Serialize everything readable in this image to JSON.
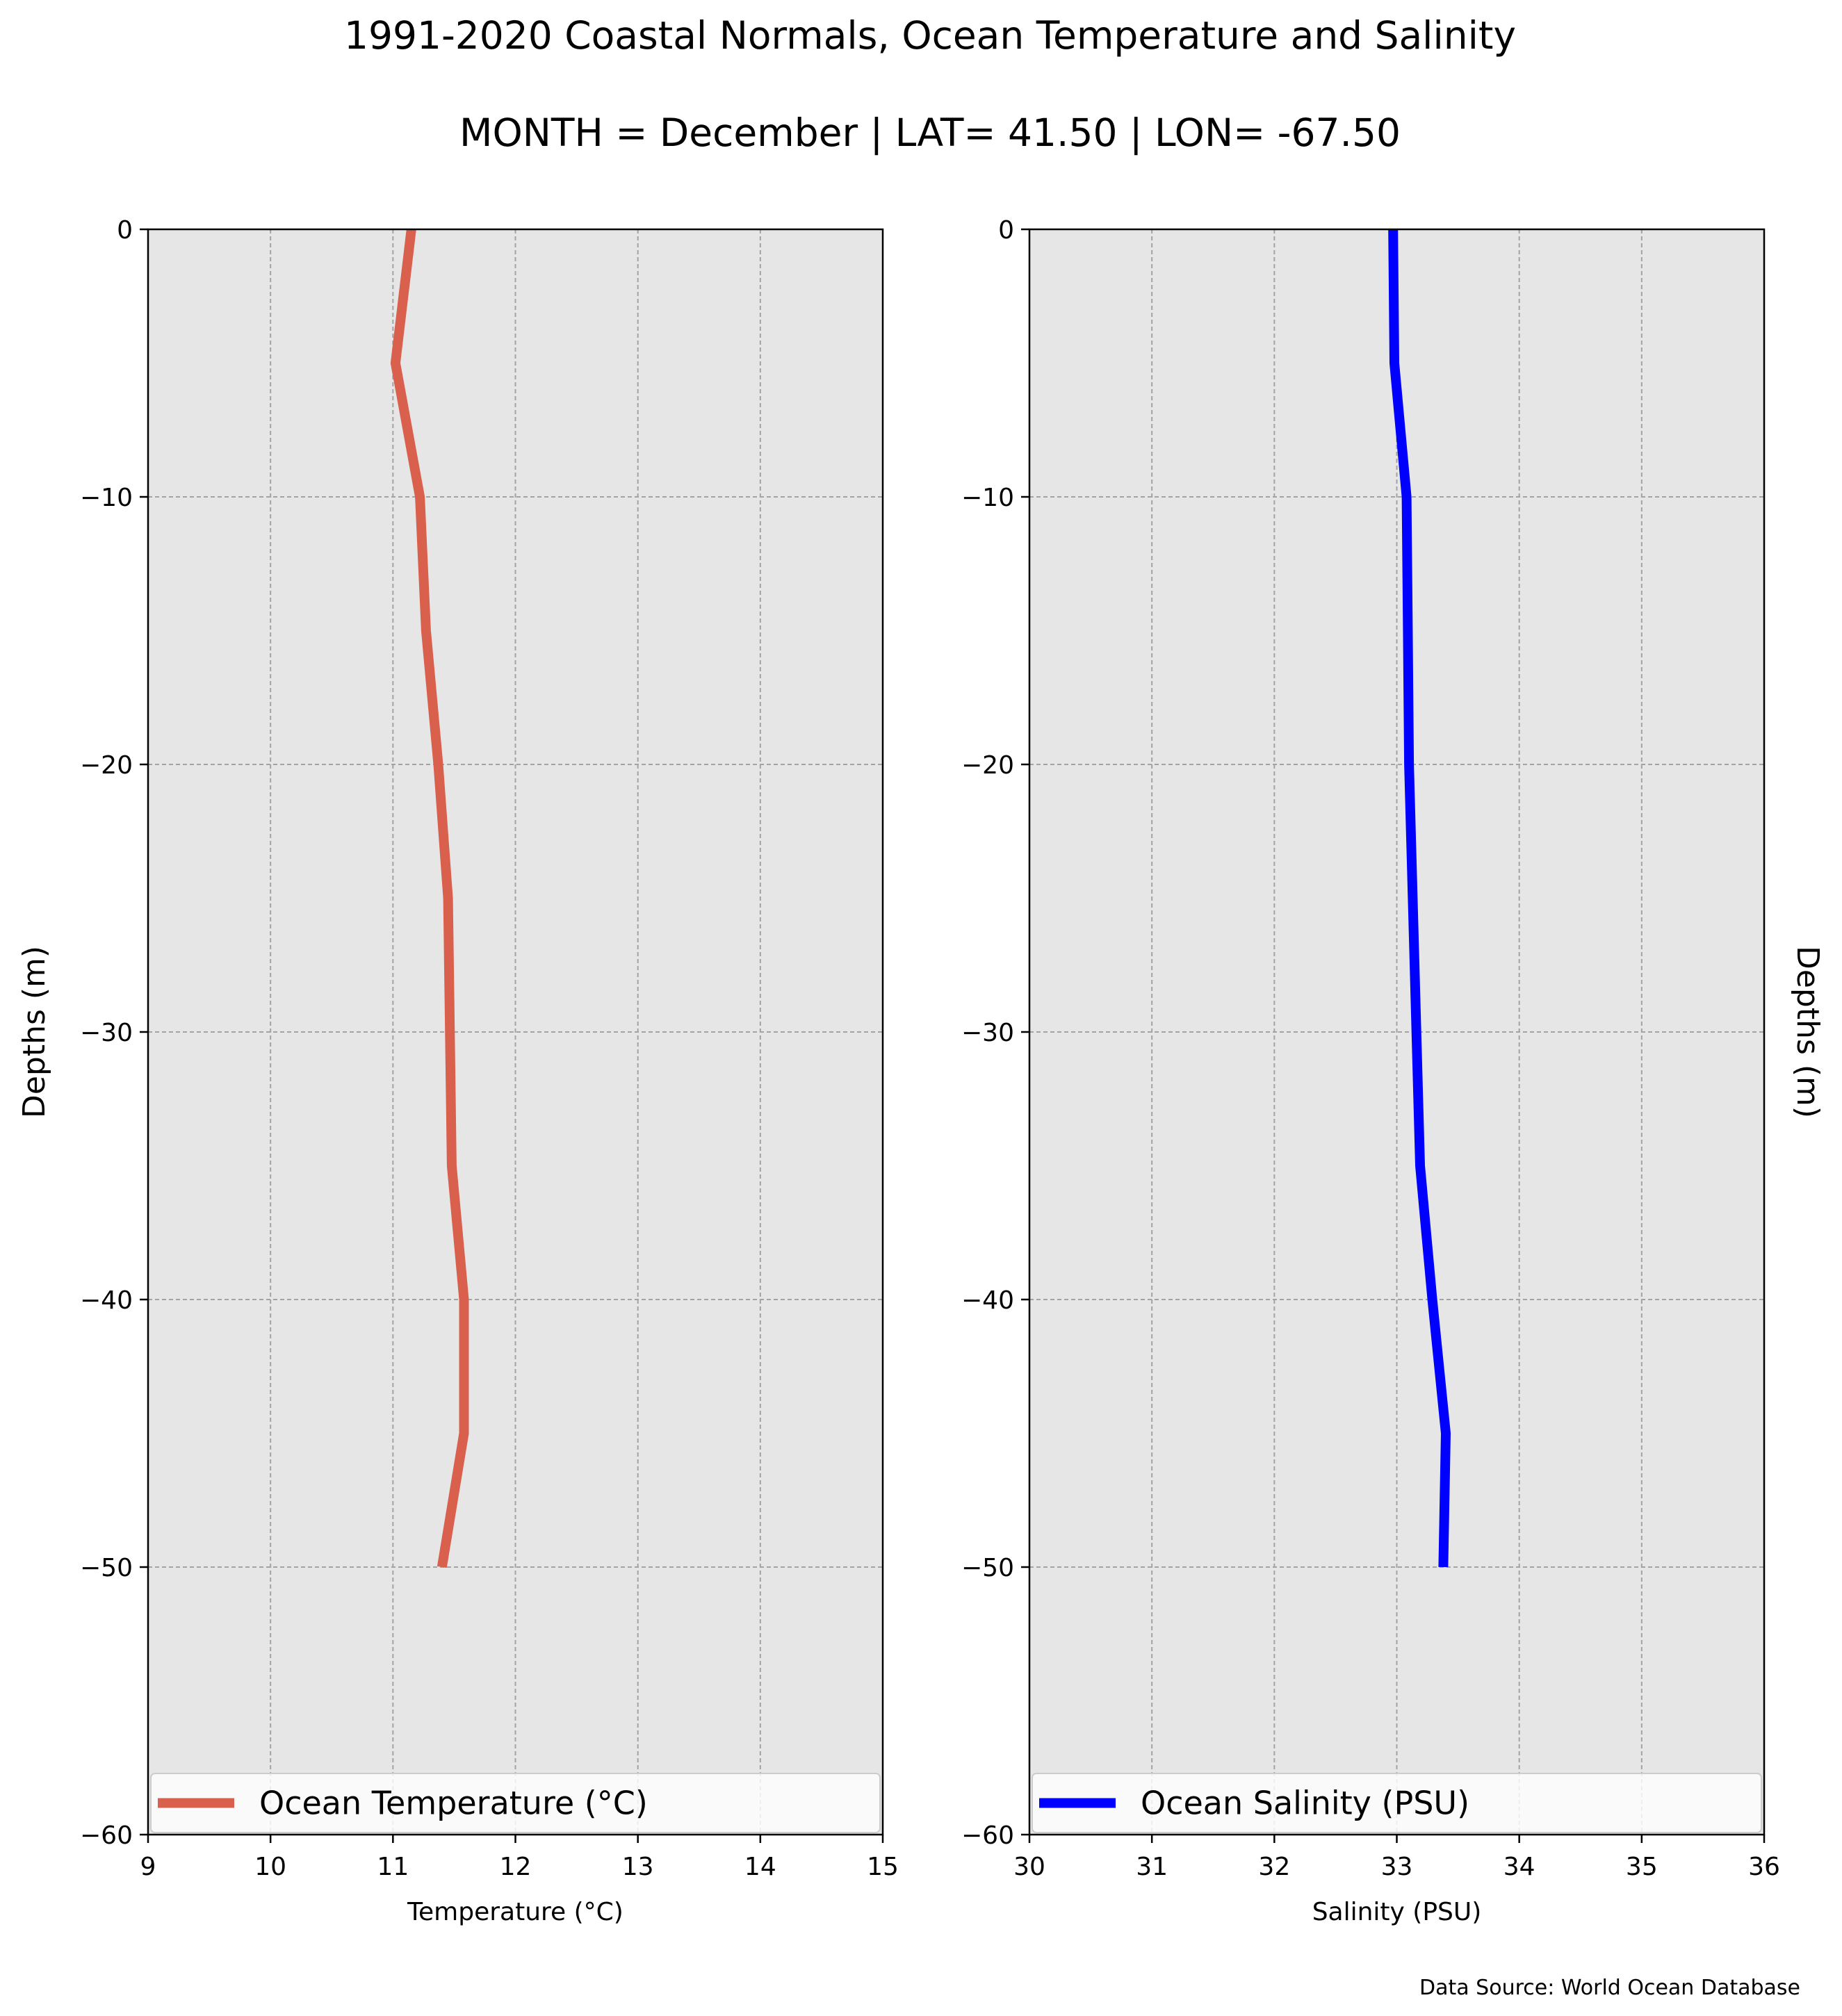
{
  "title": "1991-2020 Coastal Normals, Ocean Temperature and Salinity",
  "subtitle": "MONTH = December | LAT= 41.50 | LON= -67.50",
  "source": "Data Source: World Ocean Database",
  "chart_data": [
    {
      "type": "line",
      "xlabel": "Temperature (°C)",
      "ylabel": "Depths (m)",
      "xlim": [
        9,
        15
      ],
      "ylim": [
        -60,
        0
      ],
      "xticks": [
        "9",
        "10",
        "11",
        "12",
        "13",
        "14",
        "15"
      ],
      "yticks": [
        "0",
        "−10",
        "−20",
        "−30",
        "−40",
        "−50",
        "−60"
      ],
      "grid": true,
      "legend_position": "lower center",
      "background": "#e6e6e6",
      "series": [
        {
          "name": "Ocean Temperature (°C)",
          "color": "#d9604c",
          "x": [
            11.15,
            11.02,
            11.22,
            11.27,
            11.37,
            11.45,
            11.48,
            11.58,
            11.58,
            11.4
          ],
          "y": [
            0,
            -5,
            -10,
            -15,
            -20,
            -25,
            -35,
            -40,
            -45,
            -50
          ]
        }
      ]
    },
    {
      "type": "line",
      "xlabel": "Salinity (PSU)",
      "ylabel": "Depths (m)",
      "xlim": [
        30,
        36
      ],
      "ylim": [
        -60,
        0
      ],
      "xticks": [
        "30",
        "31",
        "32",
        "33",
        "34",
        "35",
        "36"
      ],
      "yticks": [
        "0",
        "−10",
        "−20",
        "−30",
        "−40",
        "−50",
        "−60"
      ],
      "grid": true,
      "legend_position": "lower center",
      "ylabel_position": "right",
      "background": "#e6e6e6",
      "series": [
        {
          "name": "Ocean Salinity (PSU)",
          "color": "#0000ff",
          "x": [
            32.97,
            32.98,
            33.08,
            33.09,
            33.1,
            33.13,
            33.19,
            33.29,
            33.4,
            33.38
          ],
          "y": [
            0,
            -5,
            -10,
            -15,
            -20,
            -25,
            -35,
            -40,
            -45,
            -50
          ]
        }
      ]
    }
  ]
}
